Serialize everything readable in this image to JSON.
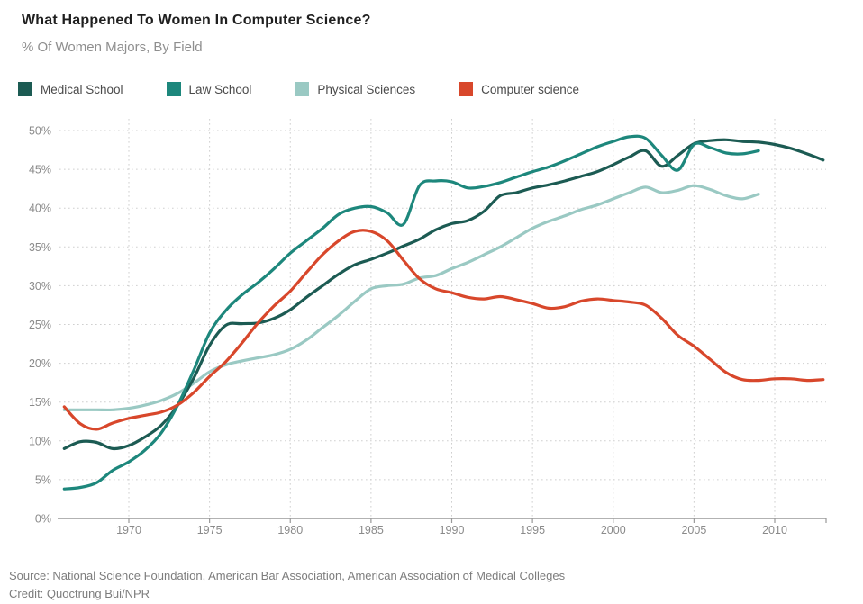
{
  "header": {
    "title": "What Happened To Women In Computer Science?",
    "subtitle": "% Of Women Majors, By Field"
  },
  "chart_data": {
    "type": "line",
    "title": "What Happened To Women In Computer Science?",
    "subtitle": "% Of Women Majors, By Field",
    "unit": "%",
    "x_ticks": [
      1970,
      1975,
      1980,
      1985,
      1990,
      1995,
      2000,
      2005,
      2010
    ],
    "y_ticks": [
      0,
      5,
      10,
      15,
      20,
      25,
      30,
      35,
      40,
      45,
      50
    ],
    "x_range": [
      1966,
      2013.4
    ],
    "y_range": [
      0,
      50
    ],
    "grid": "dotted",
    "legend_position": "top",
    "colors": {
      "grid": "#cfcfcf",
      "axis": "#999999",
      "tick_text": "#8a8a8a"
    },
    "series": [
      {
        "key": "medical-school",
        "name": "Medical School",
        "color": "#1c5b53",
        "start_year": 1966,
        "values": [
          9.0,
          9.9,
          9.8,
          9.0,
          9.4,
          10.5,
          12.0,
          14.5,
          18.0,
          22.3,
          24.9,
          25.1,
          25.2,
          25.8,
          26.9,
          28.5,
          30.0,
          31.5,
          32.7,
          33.4,
          34.2,
          35.1,
          36.0,
          37.2,
          38.0,
          38.4,
          39.6,
          41.6,
          42.0,
          42.6,
          43.0,
          43.5,
          44.1,
          44.7,
          45.6,
          46.6,
          47.4,
          45.4,
          46.8,
          48.3,
          48.7,
          48.8,
          48.6,
          48.5,
          48.2,
          47.7,
          47.0,
          46.2
        ]
      },
      {
        "key": "law-school",
        "name": "Law School",
        "color": "#1d877c",
        "start_year": 1966,
        "values": [
          3.8,
          4.0,
          4.6,
          6.2,
          7.3,
          8.8,
          11.0,
          14.5,
          19.0,
          23.9,
          26.8,
          28.8,
          30.4,
          32.2,
          34.2,
          35.8,
          37.4,
          39.2,
          40.0,
          40.2,
          39.4,
          37.9,
          42.9,
          43.5,
          43.4,
          42.6,
          42.8,
          43.3,
          44.0,
          44.7,
          45.3,
          46.1,
          47.0,
          47.9,
          48.6,
          49.2,
          49.0,
          46.8,
          44.9,
          48.2,
          47.8,
          47.1,
          47.0,
          47.4
        ]
      },
      {
        "key": "physical-sciences",
        "name": "Physical Sciences",
        "color": "#9ac9c3",
        "start_year": 1966,
        "values": [
          14.0,
          14.0,
          14.0,
          14.0,
          14.2,
          14.6,
          15.2,
          16.1,
          17.4,
          18.9,
          19.8,
          20.3,
          20.7,
          21.1,
          21.8,
          23.0,
          24.6,
          26.2,
          28.0,
          29.6,
          30.0,
          30.2,
          31.0,
          31.3,
          32.2,
          33.0,
          34.0,
          35.0,
          36.2,
          37.4,
          38.3,
          39.0,
          39.8,
          40.4,
          41.2,
          42.0,
          42.7,
          42.0,
          42.3,
          42.9,
          42.4,
          41.6,
          41.2,
          41.8
        ]
      },
      {
        "key": "computer-science",
        "name": "Computer science",
        "color": "#d8472b",
        "start_year": 1966,
        "values": [
          14.4,
          12.2,
          11.5,
          12.3,
          12.9,
          13.3,
          13.7,
          14.6,
          16.2,
          18.3,
          20.2,
          22.6,
          25.2,
          27.4,
          29.3,
          31.7,
          34.0,
          35.8,
          37.0,
          37.0,
          35.8,
          33.3,
          30.9,
          29.6,
          29.1,
          28.5,
          28.3,
          28.6,
          28.2,
          27.7,
          27.1,
          27.3,
          28.0,
          28.3,
          28.1,
          27.9,
          27.5,
          25.8,
          23.6,
          22.2,
          20.5,
          18.8,
          17.9,
          17.8,
          18.0,
          18.0,
          17.8,
          17.9
        ]
      }
    ]
  },
  "footer": {
    "source": "Source: National Science Foundation, American Bar Association, American Association of Medical Colleges",
    "credit": "Credit: Quoctrung Bui/NPR"
  }
}
